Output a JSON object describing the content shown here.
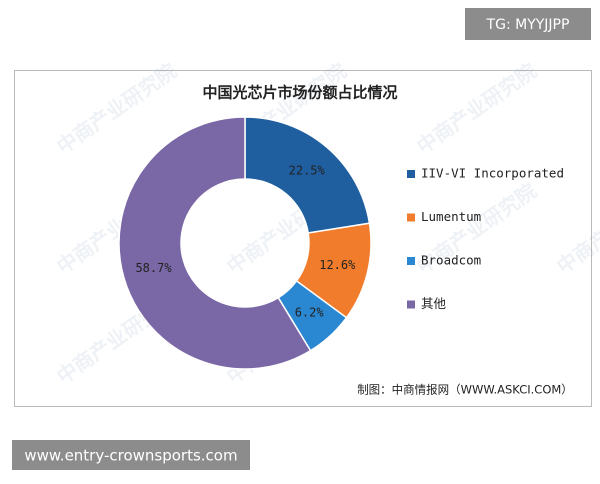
{
  "tag": "TG: MYYJJPP",
  "footer_url": "www.entry-crownsports.com",
  "chart_data": {
    "type": "donut",
    "title": "中国光芯片市场份额占比情况",
    "categories": [
      "IIV-VI Incorporated",
      "Lumentum",
      "Broadcom",
      "其他"
    ],
    "values": [
      22.5,
      12.6,
      6.2,
      58.7
    ],
    "value_labels": [
      "22.5%",
      "12.6%",
      "6.2%",
      "58.7%"
    ],
    "colors": [
      "#1f5f9f",
      "#f17c2b",
      "#2a87d1",
      "#7a67a6"
    ],
    "legend": "right",
    "source": "制图：中商情报网（WWW.ASKCI.COM）",
    "watermark": "中商产业研究院"
  }
}
